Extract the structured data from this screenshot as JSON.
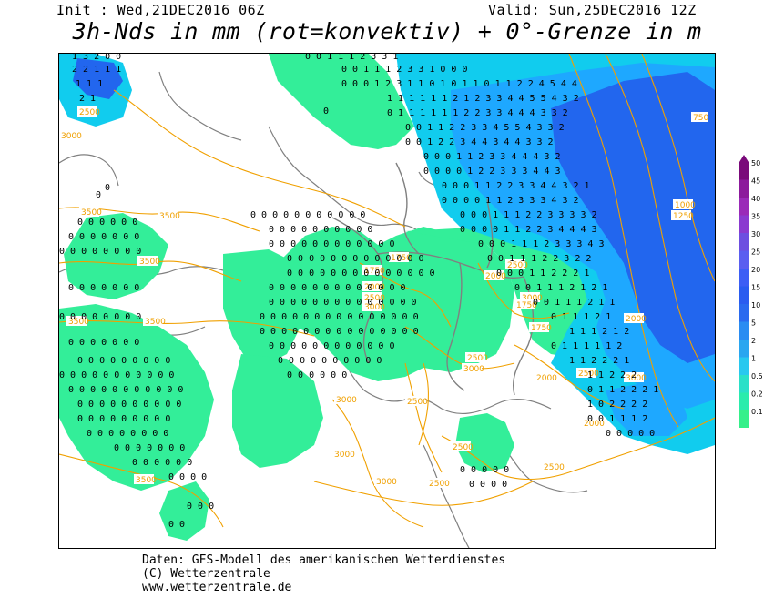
{
  "header": {
    "init": "Init : Wed,21DEC2016 06Z",
    "valid": "Valid: Sun,25DEC2016 12Z",
    "title": "3h-Nds in mm (rot=konvektiv) + 0°-Grenze in m"
  },
  "footer": {
    "line1": "Daten: GFS-Modell des amerikanischen Wetterdienstes",
    "line2": "(C) Wetterzentrale",
    "line3": "www.wetterzentrale.de"
  },
  "legend": {
    "levels": [
      "50",
      "45",
      "40",
      "35",
      "30",
      "25",
      "20",
      "15",
      "10",
      "5",
      "2",
      "1",
      "0.5",
      "0.2",
      "0.1"
    ],
    "colors": [
      "#7a0a7a",
      "#8c1a9c",
      "#9a2ab8",
      "#8a3ad0",
      "#6d4ee0",
      "#5a5ef0",
      "#3d5ef5",
      "#2a5cf0",
      "#2a6aef",
      "#2a8cf2",
      "#2aa6f0",
      "#28c8ef",
      "#2ae0c8",
      "#2aecac",
      "#35f08a"
    ]
  },
  "contour_labels": [
    {
      "text": "2500",
      "color": "#f0a000"
    },
    {
      "text": "3000",
      "color": "#f0a000"
    },
    {
      "text": "3500",
      "color": "#f0a000"
    },
    {
      "text": "1750",
      "color": "#f0a000"
    },
    {
      "text": "2000",
      "color": "#f0a000"
    },
    {
      "text": "1000",
      "color": "#f0a000"
    },
    {
      "text": "1250",
      "color": "#f0a000"
    },
    {
      "text": "750",
      "color": "#f0a000"
    }
  ],
  "colors": {
    "light_green": "#33ee99",
    "cyan": "#11ccee",
    "blue_light": "#1ea8ff",
    "blue": "#2266ee",
    "contour": "#f0a000",
    "borders": "#808080"
  }
}
